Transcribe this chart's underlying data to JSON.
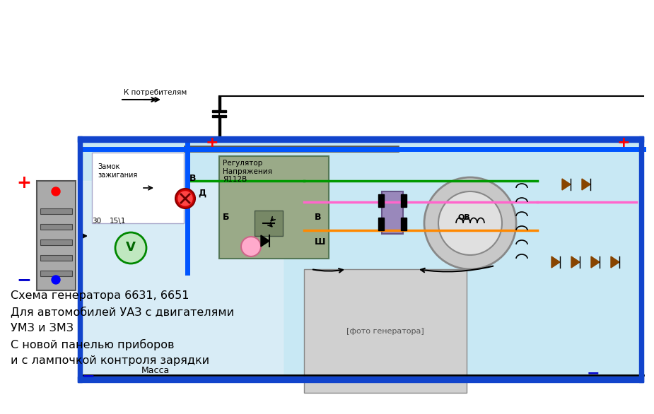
{
  "bg_color": "#ffffff",
  "diagram_bg": "#cce8f0",
  "left_panel_bg": "#ddeeff",
  "title": "",
  "text_lines": [
    "Схема генератора 6631, 6651",
    "Для автомобилей УАЗ с двигателями",
    "УМЗ и ЗМЗ",
    "С новой панелью приборов",
    "и с лампочкой контроля зарядки"
  ],
  "k_potrebitelyam": "К потребителям",
  "zamok": "Замок\nзажигания",
  "regulator": "Регулятор\nНапряжения\nЯ112В",
  "massa": "Масса",
  "plus_color": "#ff0000",
  "minus_color": "#0000cc",
  "wire_blue": "#0055ff",
  "wire_green": "#009900",
  "wire_pink": "#ff66cc",
  "wire_orange": "#ff8800",
  "wire_gray": "#888888",
  "wire_black": "#000000",
  "wire_red": "#cc0000"
}
